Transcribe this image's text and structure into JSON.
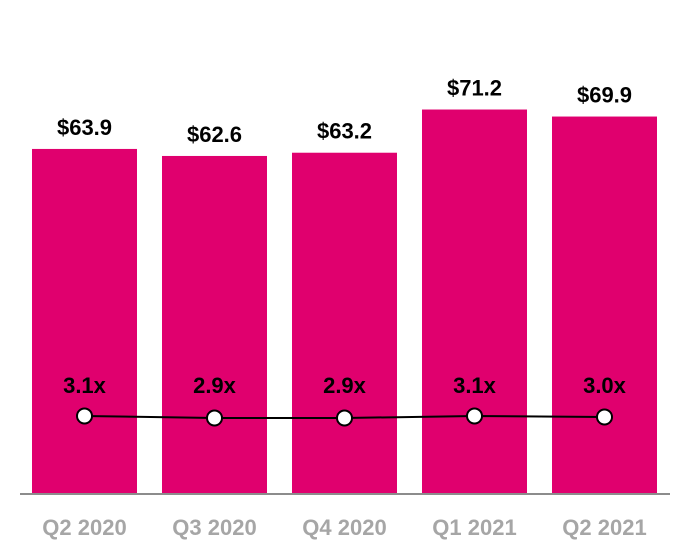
{
  "chart_data": {
    "type": "bar",
    "categories": [
      "Q2 2020",
      "Q3 2020",
      "Q4 2020",
      "Q1 2021",
      "Q2 2021"
    ],
    "series": [
      {
        "type": "bar",
        "values": [
          63.9,
          62.6,
          63.2,
          71.2,
          69.9
        ],
        "labels": [
          "$63.9",
          "$62.6",
          "$63.2",
          "$71.2",
          "$69.9"
        ]
      },
      {
        "type": "line",
        "values": [
          3.1,
          2.9,
          2.9,
          3.1,
          3.0
        ],
        "labels": [
          "3.1x",
          "2.9x",
          "2.9x",
          "3.1x",
          "3.0x"
        ]
      }
    ],
    "title": "",
    "xlabel": "",
    "ylabel": "",
    "ylim": [
      0,
      75
    ],
    "grid": false,
    "legend": "none"
  },
  "colors": {
    "bar": "#e0006e",
    "line": "#000000",
    "marker_fill": "#ffffff",
    "axis": "#8c8c8c",
    "tick_text": "#a6a6a6"
  }
}
